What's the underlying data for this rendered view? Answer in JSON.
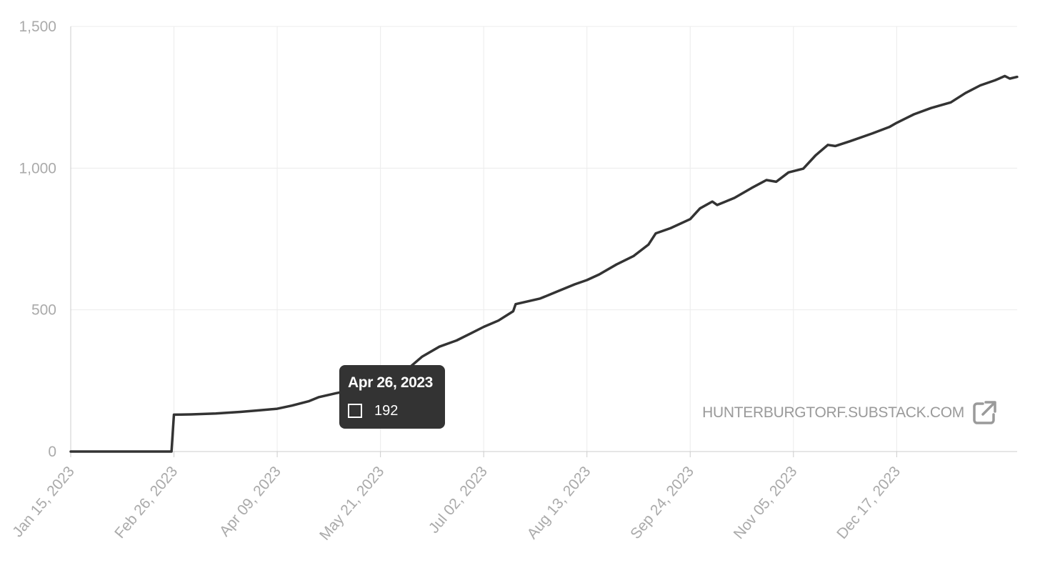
{
  "chart_data": {
    "type": "line",
    "title": "",
    "xlabel": "",
    "ylabel": "",
    "ylim": [
      0,
      1500
    ],
    "xlim": [
      "2023-01-15",
      "2024-02-04"
    ],
    "grid": true,
    "y_ticks": [
      0,
      500,
      1000,
      1500
    ],
    "y_tick_labels": [
      "0",
      "500",
      "1,000",
      "1,500"
    ],
    "x_ticks": [
      "2023-01-15",
      "2023-02-26",
      "2023-04-09",
      "2023-05-21",
      "2023-07-02",
      "2023-08-13",
      "2023-09-24",
      "2023-11-05",
      "2023-12-17"
    ],
    "x_tick_labels": [
      "Jan 15, 2023",
      "Feb 26, 2023",
      "Apr 09, 2023",
      "May 21, 2023",
      "Jul 02, 2023",
      "Aug 13, 2023",
      "Sep 24, 2023",
      "Nov 05, 2023",
      "Dec 17, 2023"
    ],
    "series": [
      {
        "color": "#333333",
        "points": [
          [
            "2023-01-15",
            0
          ],
          [
            "2023-02-25",
            0
          ],
          [
            "2023-02-26",
            130
          ],
          [
            "2023-03-05",
            131
          ],
          [
            "2023-03-15",
            134
          ],
          [
            "2023-03-25",
            140
          ],
          [
            "2023-04-01",
            145
          ],
          [
            "2023-04-09",
            151
          ],
          [
            "2023-04-15",
            162
          ],
          [
            "2023-04-22",
            178
          ],
          [
            "2023-04-26",
            192
          ],
          [
            "2023-05-03",
            206
          ],
          [
            "2023-05-10",
            218
          ],
          [
            "2023-05-21",
            235
          ],
          [
            "2023-05-28",
            265
          ],
          [
            "2023-06-02",
            298
          ],
          [
            "2023-06-07",
            335
          ],
          [
            "2023-06-14",
            370
          ],
          [
            "2023-06-21",
            392
          ],
          [
            "2023-06-27",
            418
          ],
          [
            "2023-07-02",
            440
          ],
          [
            "2023-07-08",
            462
          ],
          [
            "2023-07-14",
            495
          ],
          [
            "2023-07-15",
            520
          ],
          [
            "2023-07-25",
            540
          ],
          [
            "2023-08-01",
            565
          ],
          [
            "2023-08-08",
            590
          ],
          [
            "2023-08-13",
            605
          ],
          [
            "2023-08-18",
            625
          ],
          [
            "2023-08-25",
            660
          ],
          [
            "2023-09-01",
            690
          ],
          [
            "2023-09-07",
            730
          ],
          [
            "2023-09-10",
            770
          ],
          [
            "2023-09-16",
            788
          ],
          [
            "2023-09-24",
            820
          ],
          [
            "2023-09-28",
            858
          ],
          [
            "2023-10-03",
            882
          ],
          [
            "2023-10-05",
            870
          ],
          [
            "2023-10-12",
            895
          ],
          [
            "2023-10-19",
            930
          ],
          [
            "2023-10-25",
            958
          ],
          [
            "2023-10-29",
            952
          ],
          [
            "2023-11-03",
            985
          ],
          [
            "2023-11-09",
            998
          ],
          [
            "2023-11-14",
            1045
          ],
          [
            "2023-11-19",
            1082
          ],
          [
            "2023-11-22",
            1078
          ],
          [
            "2023-11-28",
            1095
          ],
          [
            "2023-12-07",
            1122
          ],
          [
            "2023-12-14",
            1145
          ],
          [
            "2023-12-17",
            1160
          ],
          [
            "2023-12-24",
            1190
          ],
          [
            "2023-12-31",
            1212
          ],
          [
            "2024-01-08",
            1232
          ],
          [
            "2024-01-14",
            1265
          ],
          [
            "2024-01-20",
            1292
          ],
          [
            "2024-01-26",
            1310
          ],
          [
            "2024-01-30",
            1325
          ],
          [
            "2024-02-01",
            1316
          ],
          [
            "2024-02-04",
            1322
          ]
        ]
      }
    ]
  },
  "tooltip": {
    "date": "Apr 26, 2023",
    "value": "192",
    "x": "2023-04-26",
    "y": 192
  },
  "source": {
    "text": "HUNTERBURGTORF.SUBSTACK.COM",
    "icon": "external-link-icon"
  },
  "colors": {
    "line": "#333333",
    "grid": "#ececec",
    "axis": "#cccccc",
    "tick_label": "#aaaaaa",
    "tooltip_bg": "#333333"
  }
}
